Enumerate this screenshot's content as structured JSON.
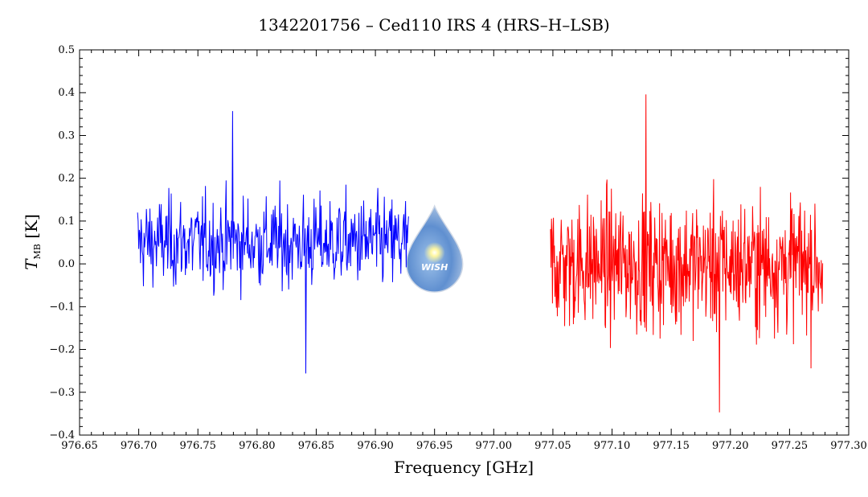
{
  "chart_data": {
    "type": "line",
    "title": "1342201756 – Ced110 IRS 4 (HRS–H–LSB)",
    "xlabel": "Frequency [GHz]",
    "ylabel_main": "T",
    "ylabel_sub": "MB",
    "ylabel_unit": " [K]",
    "xlim": [
      976.65,
      977.3
    ],
    "ylim": [
      -0.4,
      0.5
    ],
    "xticks": [
      976.65,
      976.7,
      976.75,
      976.8,
      976.85,
      976.9,
      976.95,
      977.0,
      977.05,
      977.1,
      977.15,
      977.2,
      977.25,
      977.3
    ],
    "xtick_labels": [
      "976.65",
      "976.70",
      "976.75",
      "976.80",
      "976.85",
      "976.90",
      "976.95",
      "977.00",
      "977.05",
      "977.10",
      "977.15",
      "977.20",
      "977.25",
      "977.30"
    ],
    "yticks": [
      -0.4,
      -0.3,
      -0.2,
      -0.1,
      0.0,
      0.1,
      0.2,
      0.3,
      0.4,
      0.5
    ],
    "ytick_labels": [
      "−0.4",
      "−0.3",
      "−0.2",
      "−0.1",
      "0.0",
      "0.1",
      "0.2",
      "0.3",
      "0.4",
      "0.5"
    ],
    "grid": false,
    "legend": "none",
    "series": [
      {
        "color": "#0000ff",
        "x_range": [
          976.699,
          976.928
        ],
        "level": 0.05,
        "noise_sigma": 0.075,
        "y_min": -0.256,
        "y_max": 0.357,
        "samples": 460,
        "shape": "noise spectrum"
      },
      {
        "color": "#ff0000",
        "x_range": [
          977.048,
          977.278
        ],
        "level": 0.0,
        "noise_sigma": 0.11,
        "y_min": -0.347,
        "y_max": 0.396,
        "samples": 560,
        "shape": "noise spectrum"
      }
    ],
    "logo": {
      "text": "WISH",
      "center_x": 976.95,
      "center_y": 0.0
    }
  }
}
